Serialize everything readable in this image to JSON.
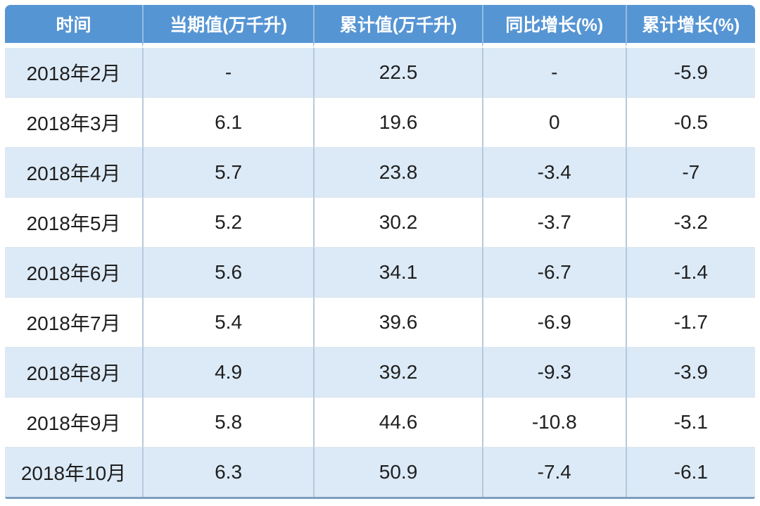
{
  "colors": {
    "header_bg": "#5695d3",
    "header_text": "#ffffff",
    "row_alt_bg": "#dceaf7",
    "row_bg": "#ffffff",
    "body_text": "#1f1f1f",
    "divider": "#b6c9db",
    "bottom_border": "#7e9fc0"
  },
  "chart_data": {
    "type": "table",
    "columns": [
      "时间",
      "当期值(万千升)",
      "累计值(万千升)",
      "同比增长(%)",
      "累计增长(%)"
    ],
    "rows": [
      [
        "2018年2月",
        "-",
        "22.5",
        "-",
        "-5.9"
      ],
      [
        "2018年3月",
        "6.1",
        "19.6",
        "0",
        "-0.5"
      ],
      [
        "2018年4月",
        "5.7",
        "23.8",
        "-3.4",
        "-7"
      ],
      [
        "2018年5月",
        "5.2",
        "30.2",
        "-3.7",
        "-3.2"
      ],
      [
        "2018年6月",
        "5.6",
        "34.1",
        "-6.7",
        "-1.4"
      ],
      [
        "2018年7月",
        "5.4",
        "39.6",
        "-6.9",
        "-1.7"
      ],
      [
        "2018年8月",
        "4.9",
        "39.2",
        "-9.3",
        "-3.9"
      ],
      [
        "2018年9月",
        "5.8",
        "44.6",
        "-10.8",
        "-5.1"
      ],
      [
        "2018年10月",
        "6.3",
        "50.9",
        "-7.4",
        "-6.1"
      ]
    ]
  }
}
